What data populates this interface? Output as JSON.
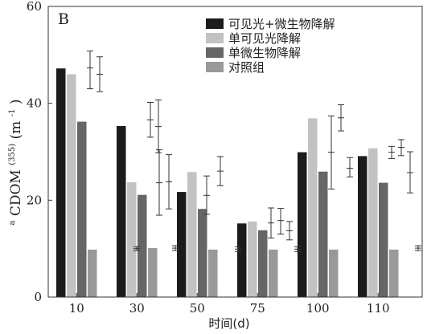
{
  "chart_data": {
    "type": "bar",
    "panel_label": "B",
    "title": "",
    "xlabel": "时间(d)",
    "ylabel_parts": {
      "sup_left": "a",
      "main": "CDOM",
      "sup_mid": "(355)",
      "paren": "(m",
      "sup_unit": "-1",
      "close": ")"
    },
    "ylim": [
      0,
      60
    ],
    "yticks": [
      0,
      20,
      40,
      60
    ],
    "categories": [
      "10",
      "30",
      "50",
      "75",
      "100",
      "110"
    ],
    "legend_position": "top-right",
    "series": [
      {
        "name": "可见光+微生物降解",
        "color": "#1b1b1b",
        "values": [
          47.2,
          35.3,
          21.7,
          15.2,
          29.9,
          29.1
        ]
      },
      {
        "name": "单可见光降解",
        "color": "#c2c2c2",
        "values": [
          46.0,
          23.7,
          25.8,
          15.6,
          36.9,
          30.7
        ]
      },
      {
        "name": "单微生物降解",
        "color": "#666666",
        "values": [
          36.2,
          21.1,
          18.2,
          13.8,
          25.9,
          23.6
        ]
      },
      {
        "name": "对照组",
        "color": "#999999",
        "values": [
          9.8,
          10.1,
          9.8,
          9.8,
          9.8,
          9.8
        ]
      }
    ],
    "error_bars": [
      {
        "category": "10",
        "center": 47.3,
        "low": 43.0,
        "high": 50.8
      },
      {
        "category": "10",
        "center": 46.0,
        "low": 42.4,
        "high": 49.6
      },
      {
        "category": "30",
        "center": 36.6,
        "low": 33.0,
        "high": 40.2
      },
      {
        "category": "30",
        "center": 35.2,
        "low": 29.8,
        "high": 40.7
      },
      {
        "category": "30",
        "center": 10.0,
        "low": 9.6,
        "high": 10.4
      },
      {
        "category": "30",
        "center": 23.6,
        "low": 16.9,
        "high": 30.4
      },
      {
        "category": "50",
        "center": 23.8,
        "low": 18.2,
        "high": 29.4
      },
      {
        "category": "50",
        "center": 10.1,
        "low": 9.6,
        "high": 10.6
      },
      {
        "category": "50",
        "center": 26.0,
        "low": 23.0,
        "high": 29.0
      },
      {
        "category": "75",
        "center": 21.0,
        "low": 17.1,
        "high": 25.0
      },
      {
        "category": "75",
        "center": 9.9,
        "low": 9.4,
        "high": 10.4
      },
      {
        "category": "75",
        "center": 15.3,
        "low": 12.2,
        "high": 18.4
      },
      {
        "category": "75",
        "center": 15.8,
        "low": 13.0,
        "high": 18.3
      },
      {
        "category": "75",
        "center": 13.7,
        "low": 11.8,
        "high": 15.6
      },
      {
        "category": "100",
        "center": 9.9,
        "low": 9.4,
        "high": 10.4
      },
      {
        "category": "100",
        "center": 29.9,
        "low": 22.3,
        "high": 37.4
      },
      {
        "category": "100",
        "center": 37.0,
        "low": 34.3,
        "high": 39.7
      },
      {
        "category": "100",
        "center": 26.6,
        "low": 24.8,
        "high": 28.8
      },
      {
        "category": "110",
        "center": 29.9,
        "low": 28.6,
        "high": 31.1
      },
      {
        "category": "110",
        "center": 30.9,
        "low": 29.2,
        "high": 32.5
      },
      {
        "category": "110",
        "center": 25.7,
        "low": 21.5,
        "high": 30.0
      },
      {
        "category": "110",
        "center": 10.1,
        "low": 9.6,
        "high": 10.6
      }
    ]
  }
}
